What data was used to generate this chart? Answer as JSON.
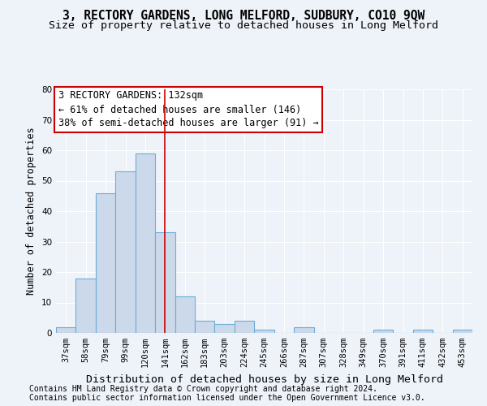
{
  "title1": "3, RECTORY GARDENS, LONG MELFORD, SUDBURY, CO10 9QW",
  "title2": "Size of property relative to detached houses in Long Melford",
  "xlabel": "Distribution of detached houses by size in Long Melford",
  "ylabel": "Number of detached properties",
  "categories": [
    "37sqm",
    "58sqm",
    "79sqm",
    "99sqm",
    "120sqm",
    "141sqm",
    "162sqm",
    "183sqm",
    "203sqm",
    "224sqm",
    "245sqm",
    "266sqm",
    "287sqm",
    "307sqm",
    "328sqm",
    "349sqm",
    "370sqm",
    "391sqm",
    "411sqm",
    "432sqm",
    "453sqm"
  ],
  "values": [
    2,
    18,
    46,
    53,
    59,
    33,
    12,
    4,
    3,
    4,
    1,
    0,
    2,
    0,
    0,
    0,
    1,
    0,
    1,
    0,
    1
  ],
  "bar_color": "#ccd9ea",
  "bar_edge_color": "#6baed6",
  "vline_x": 5.0,
  "vline_color": "#cc0000",
  "ylim": [
    0,
    80
  ],
  "yticks": [
    0,
    10,
    20,
    30,
    40,
    50,
    60,
    70,
    80
  ],
  "annotation_box_text": "3 RECTORY GARDENS: 132sqm\n← 61% of detached houses are smaller (146)\n38% of semi-detached houses are larger (91) →",
  "footnote1": "Contains HM Land Registry data © Crown copyright and database right 2024.",
  "footnote2": "Contains public sector information licensed under the Open Government Licence v3.0.",
  "background_color": "#eef2f9",
  "grid_color": "#ffffff",
  "title1_fontsize": 10.5,
  "title2_fontsize": 9.5,
  "xlabel_fontsize": 9.5,
  "ylabel_fontsize": 8.5,
  "tick_fontsize": 7.5,
  "annotation_fontsize": 8.5,
  "footnote_fontsize": 7.0
}
